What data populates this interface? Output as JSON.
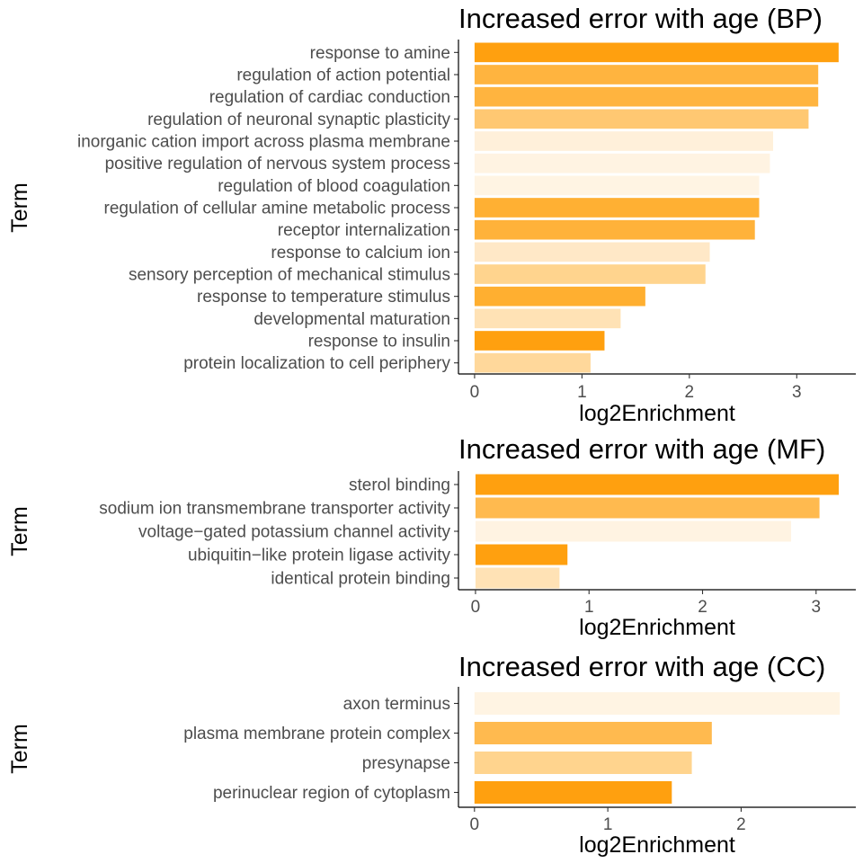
{
  "chart_data": [
    {
      "type": "bar",
      "orientation": "horizontal",
      "title": "Increased error with age (BP)",
      "xlabel": "log2Enrichment",
      "ylabel": "Term",
      "xlim": [
        -0.15,
        3.55
      ],
      "xticks": [
        0,
        1,
        2,
        3
      ],
      "grid": false,
      "categories": [
        "response to amine",
        "regulation of action potential",
        "regulation of cardiac conduction",
        "regulation of neuronal synaptic plasticity",
        "inorganic cation import across plasma membrane",
        "positive regulation of nervous system process",
        "regulation of blood coagulation",
        "regulation of cellular amine metabolic process",
        "receptor internalization",
        "response to calcium ion",
        "sensory perception of mechanical stimulus",
        "response to temperature stimulus",
        "developmental maturation",
        "response to insulin",
        "protein localization to cell periphery"
      ],
      "values": [
        3.39,
        3.2,
        3.2,
        3.11,
        2.78,
        2.75,
        2.65,
        2.65,
        2.61,
        2.19,
        2.15,
        1.59,
        1.36,
        1.21,
        1.08
      ],
      "bar_colors": [
        "#FFA00F",
        "#FFB43F",
        "#FFB43F",
        "#FFC872",
        "#FFF0DA",
        "#FFF3E2",
        "#FFF4E3",
        "#FFB033",
        "#FFB23A",
        "#FFE8C7",
        "#FFD48E",
        "#FFAF30",
        "#FFE2B5",
        "#FFA00F",
        "#FFD89B"
      ]
    },
    {
      "type": "bar",
      "orientation": "horizontal",
      "title": "Increased error with age (MF)",
      "xlabel": "log2Enrichment",
      "ylabel": "Term",
      "xlim": [
        -0.15,
        3.35
      ],
      "xticks": [
        0,
        1,
        2,
        3
      ],
      "grid": false,
      "categories": [
        "sterol binding",
        "sodium ion transmembrane transporter activity",
        "voltage−gated potassium channel activity",
        "ubiquitin−like protein ligase activity",
        "identical protein binding"
      ],
      "values": [
        3.2,
        3.03,
        2.78,
        0.81,
        0.74
      ],
      "bar_colors": [
        "#FFA00F",
        "#FFBA4F",
        "#FFF3E2",
        "#FFA00F",
        "#FFE2B5"
      ]
    },
    {
      "type": "bar",
      "orientation": "horizontal",
      "title": "Increased error with age (CC)",
      "xlabel": "log2Enrichment",
      "ylabel": "Term",
      "xlim": [
        -0.12,
        2.86
      ],
      "xticks": [
        0,
        1,
        2
      ],
      "grid": false,
      "categories": [
        "axon terminus",
        "plasma membrane protein complex",
        "presynapse",
        "perinuclear region of cytoplasm"
      ],
      "values": [
        2.74,
        1.78,
        1.63,
        1.48
      ],
      "bar_colors": [
        "#FFF4E3",
        "#FFBA4F",
        "#FFD48E",
        "#FFA00F"
      ]
    }
  ]
}
